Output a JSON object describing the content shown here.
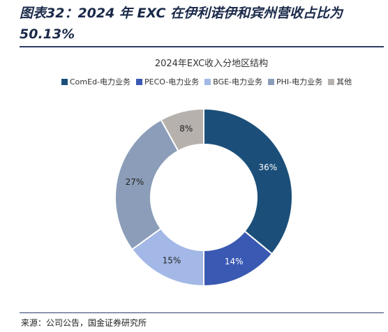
{
  "figure": {
    "title": "图表32：2024 年 EXC 在伊利诺伊和宾州营收占比为 50.13%",
    "source": "来源：公司公告，国金证券研究所"
  },
  "chart_data": {
    "type": "pie",
    "title": "2024年EXC收入分地区结构",
    "legend_position": "top",
    "donut": true,
    "categories": [
      "ComEd-电力业务",
      "PECO-电力业务",
      "BGE-电力业务",
      "PHI-电力业务",
      "其他"
    ],
    "values": [
      36,
      14,
      15,
      27,
      8
    ],
    "labels": [
      "36%",
      "14%",
      "15%",
      "27%",
      "8%"
    ],
    "colors": [
      "#1b4f79",
      "#3a59b3",
      "#a3b8e6",
      "#8b9db8",
      "#b6b1ad"
    ]
  }
}
